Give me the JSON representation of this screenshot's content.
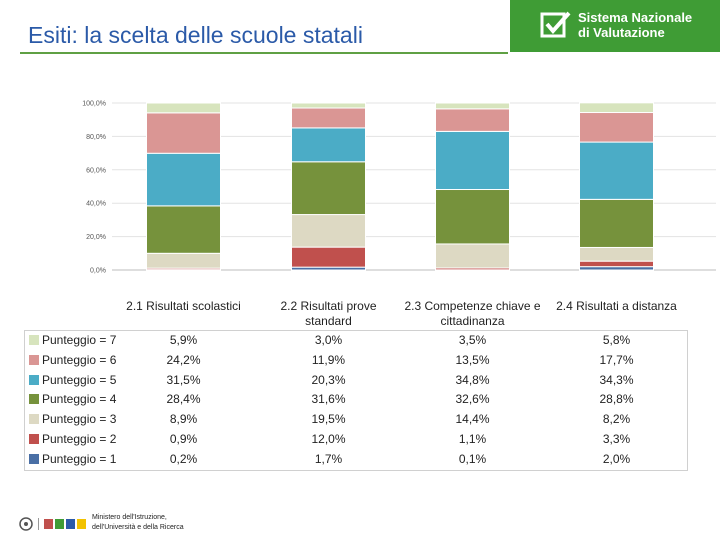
{
  "page": {
    "title": "Esiti: la scelta delle scuole statali",
    "brand_line1": "Sistema Nazionale",
    "brand_line2": "di Valutazione",
    "footer_line1": "Ministero dell'Istruzione,",
    "footer_line2": "dell'Università e della Ricerca"
  },
  "colors": {
    "brand_green": "#3f9c35",
    "title_blue": "#2b5aa8"
  },
  "chart_data": {
    "type": "bar",
    "stacked": true,
    "categories": [
      "2.1 Risultati scolastici",
      "2.2 Risultati prove standard",
      "2.3 Competenze chiave e cittadinanza",
      "2.4 Risultati a distanza"
    ],
    "ylim": [
      0,
      100
    ],
    "ytick_labels": [
      "0,0%",
      "20,0%",
      "40,0%",
      "60,0%",
      "80,0%",
      "100,0%"
    ],
    "grid": true,
    "legend": "table-below",
    "series": [
      {
        "name": "Punteggio = 1",
        "color": "#4a6fa5",
        "values": [
          0.2,
          1.7,
          0.1,
          2.0
        ],
        "labels": [
          "0,2%",
          "1,7%",
          "0,1%",
          "2,0%"
        ]
      },
      {
        "name": "Punteggio = 2",
        "color": "#c0504d",
        "values": [
          0.9,
          12.0,
          1.1,
          3.3
        ],
        "labels": [
          "0,9%",
          "12,0%",
          "1,1%",
          "3,3%"
        ]
      },
      {
        "name": "Punteggio = 3",
        "color": "#ddd9c3",
        "values": [
          8.9,
          19.5,
          14.4,
          8.2
        ],
        "labels": [
          "8,9%",
          "19,5%",
          "14,4%",
          "8,2%"
        ]
      },
      {
        "name": "Punteggio = 4",
        "color": "#76923c",
        "values": [
          28.4,
          31.6,
          32.6,
          28.8
        ],
        "labels": [
          "28,4%",
          "31,6%",
          "32,6%",
          "28,8%"
        ]
      },
      {
        "name": "Punteggio = 5",
        "color": "#4bacc6",
        "values": [
          31.5,
          20.3,
          34.8,
          34.3
        ],
        "labels": [
          "31,5%",
          "20,3%",
          "34,8%",
          "34,3%"
        ]
      },
      {
        "name": "Punteggio = 6",
        "color": "#da9694",
        "values": [
          24.2,
          11.9,
          13.5,
          17.7
        ],
        "labels": [
          "24,2%",
          "11,9%",
          "13,5%",
          "17,7%"
        ]
      },
      {
        "name": "Punteggio = 7",
        "color": "#d7e4bd",
        "values": [
          5.9,
          3.0,
          3.5,
          5.8
        ],
        "labels": [
          "5,9%",
          "3,0%",
          "3,5%",
          "5,8%"
        ]
      }
    ]
  }
}
